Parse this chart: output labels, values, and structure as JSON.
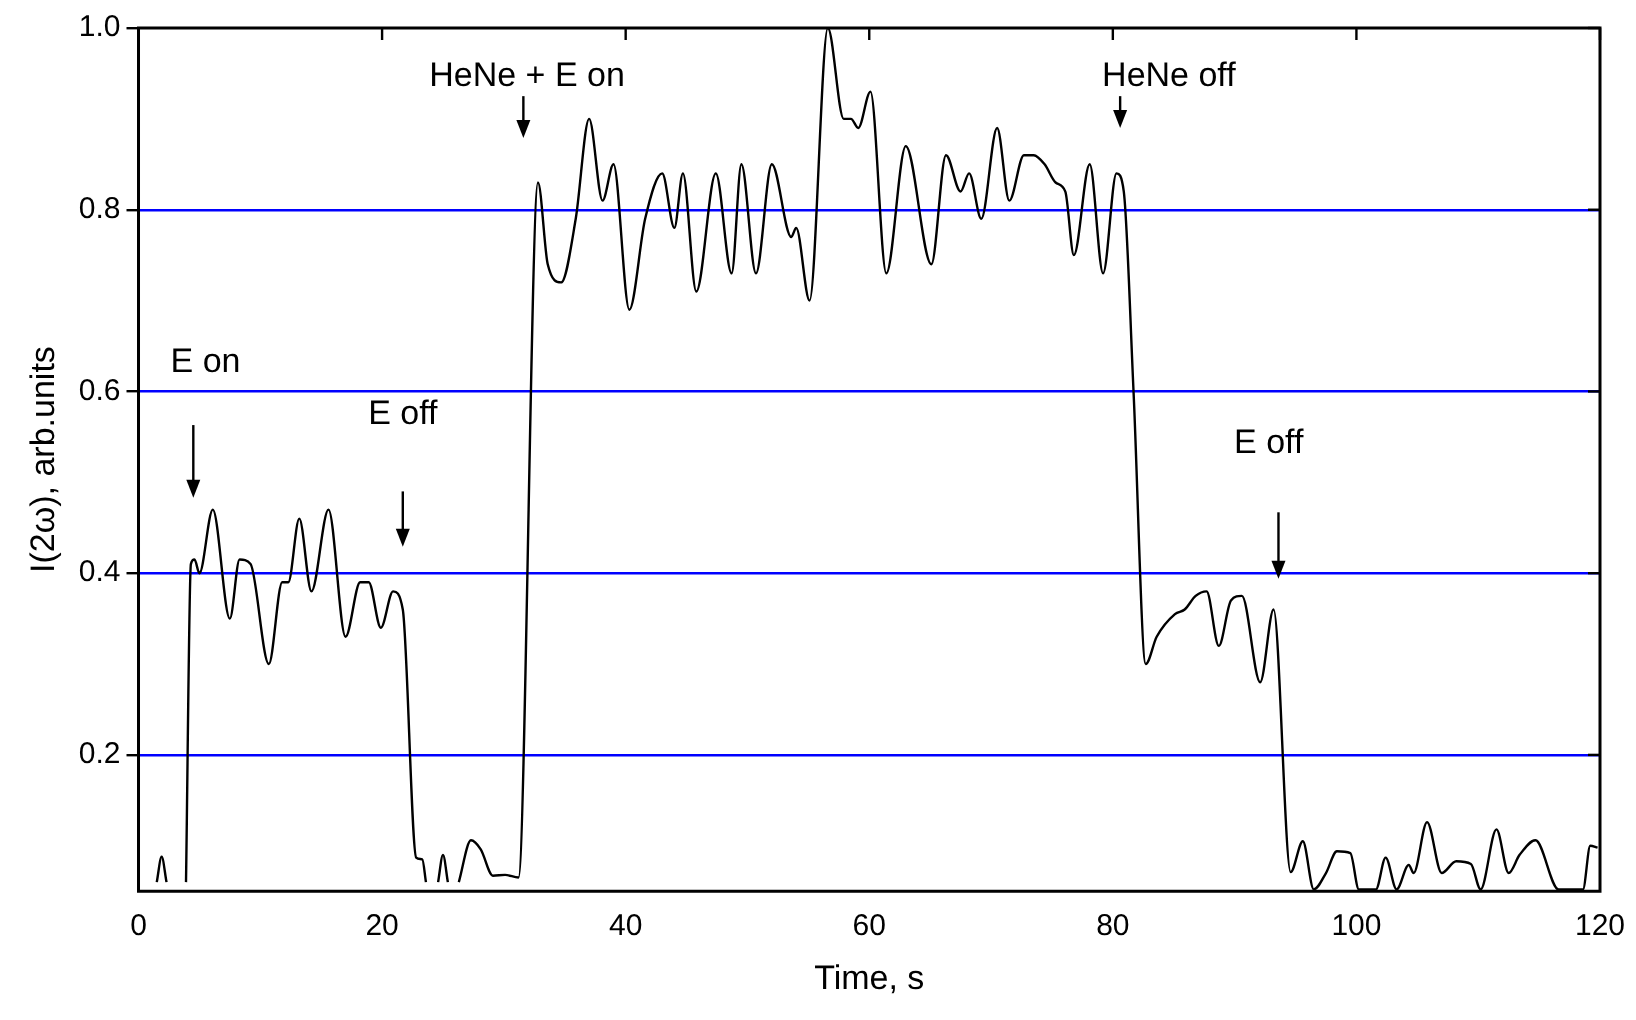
{
  "chart_data": {
    "type": "line",
    "xlabel": "Time, s",
    "ylabel": "I(2ω), arb.units",
    "x": [
      1.5,
      1.9,
      2.3,
      3.0,
      3.9,
      4.3,
      4.6,
      5.0,
      6.1,
      7.5,
      8.3,
      9.2,
      10.7,
      11.8,
      12.3,
      13.2,
      14.2,
      15.6,
      17.0,
      18.2,
      18.9,
      19.9,
      20.9,
      21.7,
      22.8,
      23.3,
      23.6,
      24.2,
      24.6,
      25.0,
      25.4,
      25.8,
      26.3,
      27.3,
      28.1,
      29.1,
      30.1,
      31.2,
      32.8,
      33.6,
      34.7,
      35.9,
      37.0,
      38.1,
      39.0,
      40.3,
      41.6,
      43.0,
      44.0,
      44.7,
      45.8,
      47.4,
      48.7,
      49.5,
      50.7,
      52.0,
      53.6,
      54.0,
      55.1,
      56.6,
      57.9,
      58.5,
      59.1,
      60.1,
      61.4,
      63.0,
      65.1,
      66.3,
      67.5,
      68.2,
      69.2,
      70.5,
      71.5,
      72.7,
      73.5,
      74.4,
      75.3,
      76.1,
      76.8,
      78.1,
      79.2,
      80.3,
      80.9,
      81.7,
      82.7,
      83.6,
      85.1,
      85.9,
      86.8,
      87.7,
      88.7,
      89.7,
      90.6,
      92.1,
      93.2,
      94.6,
      95.6,
      96.5,
      97.5,
      98.4,
      99.5,
      100.2,
      101.6,
      102.4,
      103.3,
      104.3,
      104.7,
      105.8,
      107.0,
      108.2,
      109.4,
      110.2,
      111.5,
      112.5,
      113.4,
      114.7,
      116.6,
      118.6,
      119.2,
      119.8
    ],
    "series": [
      {
        "color": "#000000",
        "values": [
          0.06,
          0.088,
          0.06,
          null,
          0.06,
          0.41,
          0.415,
          0.4,
          0.47,
          0.35,
          0.415,
          0.41,
          0.3,
          0.39,
          0.39,
          0.46,
          0.38,
          0.47,
          0.33,
          0.39,
          0.39,
          0.34,
          0.38,
          0.36,
          0.087,
          0.085,
          0.06,
          null,
          0.06,
          0.09,
          0.06,
          null,
          0.06,
          0.106,
          0.096,
          0.067,
          0.068,
          0.065,
          0.83,
          0.74,
          0.72,
          0.79,
          0.9,
          0.81,
          0.85,
          0.69,
          0.79,
          0.84,
          0.78,
          0.84,
          0.71,
          0.84,
          0.73,
          0.85,
          0.73,
          0.85,
          0.77,
          0.78,
          0.7,
          1.0,
          0.9,
          0.9,
          0.89,
          0.93,
          0.73,
          0.87,
          0.74,
          0.86,
          0.82,
          0.84,
          0.79,
          0.89,
          0.81,
          0.86,
          0.86,
          0.85,
          0.83,
          0.82,
          0.75,
          0.85,
          0.73,
          0.84,
          0.82,
          0.6,
          0.3,
          0.33,
          0.355,
          0.36,
          0.375,
          0.38,
          0.32,
          0.37,
          0.375,
          0.28,
          0.36,
          0.071,
          0.105,
          0.052,
          0.07,
          0.094,
          0.092,
          0.052,
          0.052,
          0.087,
          0.052,
          0.079,
          0.07,
          0.126,
          0.07,
          0.083,
          0.08,
          0.052,
          0.118,
          0.07,
          0.09,
          0.106,
          0.052,
          0.052,
          0.1,
          0.098
        ]
      }
    ],
    "xlim": [
      0,
      120
    ],
    "xticks": [
      0,
      20,
      40,
      60,
      80,
      100,
      120
    ],
    "ylim": [
      0.05,
      1.0
    ],
    "yticks": [
      {
        "value": 0.2,
        "label": "0.2"
      },
      {
        "value": 0.4,
        "label": "0.4"
      },
      {
        "value": 0.6,
        "label": "0.6"
      },
      {
        "value": 0.8,
        "label": "0.8"
      },
      {
        "value": 1.0,
        "label": "1.0"
      }
    ],
    "grid": "y",
    "legend": false,
    "marker": "none",
    "line_style": "solid",
    "annotations": [
      "E on",
      "E off",
      "HeNe + E on",
      "HeNe off",
      "E off"
    ]
  }
}
